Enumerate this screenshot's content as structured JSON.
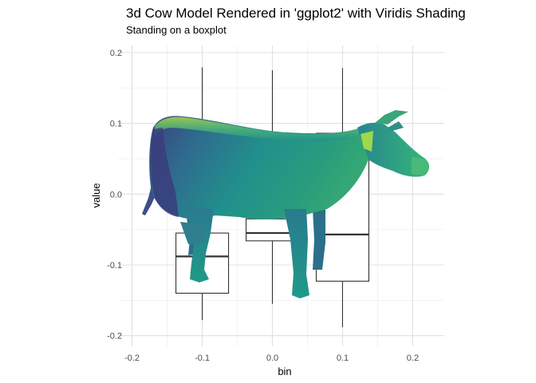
{
  "chart_data": {
    "type": "boxplot",
    "title": "3d Cow Model Rendered in 'ggplot2' with Viridis Shading",
    "subtitle": "Standing on a boxplot",
    "xlabel": "bin",
    "ylabel": "value",
    "xlim": [
      -0.22,
      0.245
    ],
    "ylim": [
      -0.215,
      0.21
    ],
    "xticks": [
      -0.2,
      -0.1,
      0.0,
      0.1,
      0.2
    ],
    "xtick_labels": [
      "-0.2",
      "-0.1",
      "0.0",
      "0.1",
      "0.2"
    ],
    "yticks": [
      -0.2,
      -0.1,
      0.0,
      0.1,
      0.2
    ],
    "ytick_labels": [
      "-0.2",
      "-0.1",
      "0.0",
      "0.1",
      "0.2"
    ],
    "grid": true,
    "legend": "none",
    "boxes": [
      {
        "x": -0.1,
        "width": 0.075,
        "min": -0.178,
        "q1": -0.14,
        "median": -0.088,
        "q3": -0.055,
        "max": 0.179
      },
      {
        "x": 0.0,
        "width": 0.075,
        "min": -0.155,
        "q1": -0.066,
        "median": -0.055,
        "q3": -0.035,
        "max": 0.175
      },
      {
        "x": 0.1,
        "width": 0.075,
        "min": -0.188,
        "q1": -0.123,
        "median": -0.057,
        "q3": 0.086,
        "max": 0.178
      }
    ],
    "overlay": {
      "name": "cow-model",
      "palette": "viridis",
      "colors": [
        "#440154",
        "#3b528b",
        "#21908c",
        "#5dc863",
        "#fde725"
      ]
    }
  }
}
